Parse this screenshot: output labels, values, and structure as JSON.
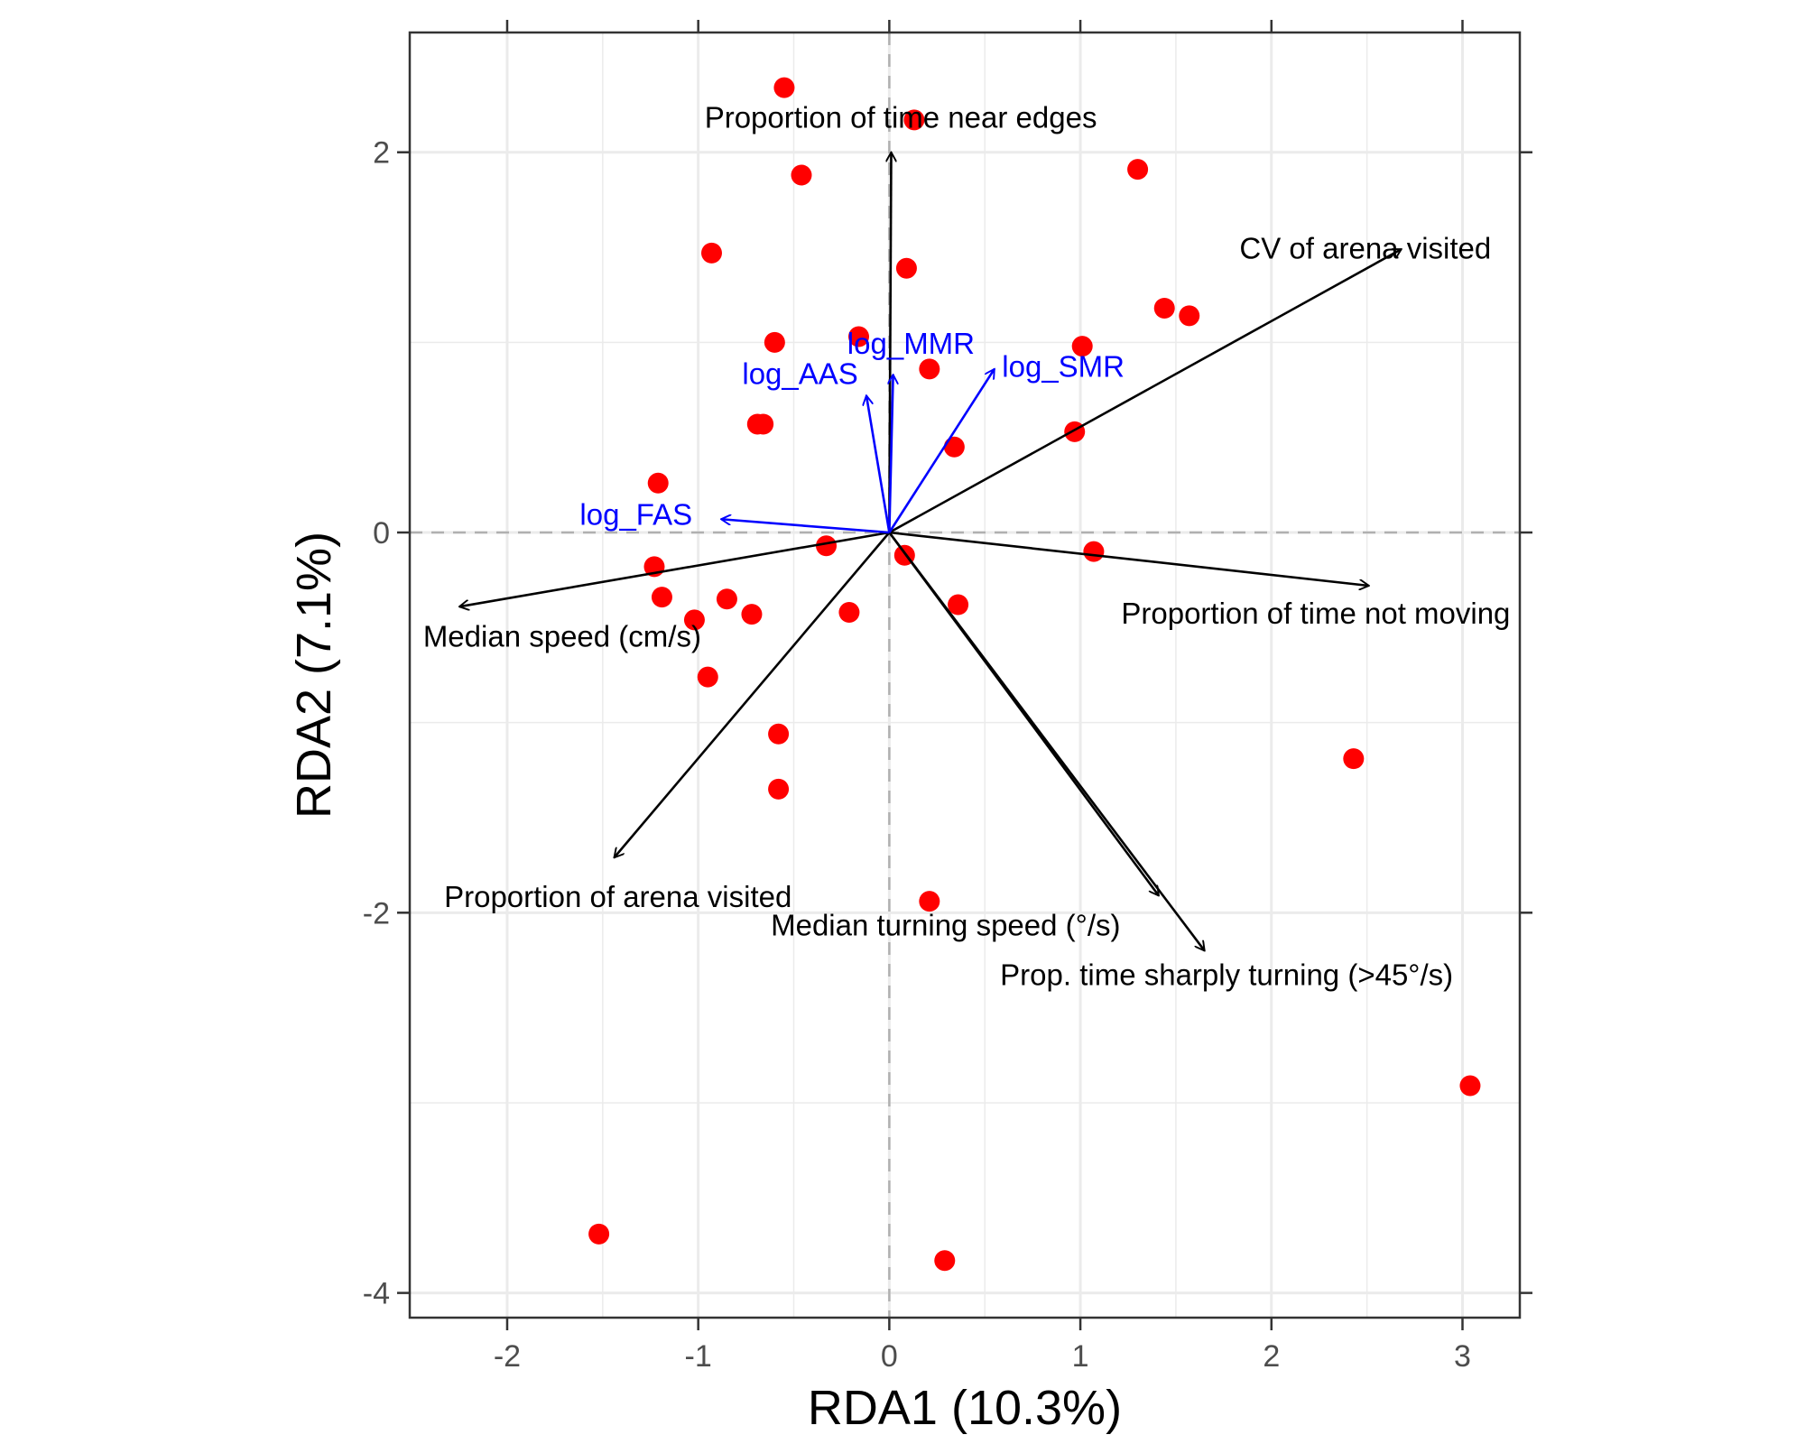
{
  "chart_data": {
    "type": "scatter",
    "subtype": "rda-biplot",
    "title": "",
    "xlabel": "RDA1 (10.3%)",
    "ylabel": "RDA2 (7.1%)",
    "xlim": [
      -2.51,
      3.3
    ],
    "ylim": [
      -4.13,
      2.63
    ],
    "xticks": [
      -2,
      -1,
      0,
      1,
      2,
      3
    ],
    "yticks": [
      -4,
      -2,
      0,
      2
    ],
    "xtick_labels": [
      "-2",
      "-1",
      "0",
      "1",
      "2",
      "3"
    ],
    "ytick_labels": [
      "-4",
      "-2",
      "0",
      "2"
    ],
    "grid": true,
    "reference_lines": {
      "x": 0,
      "y": 0,
      "style": "dashed"
    },
    "colors": {
      "points": "#ff0000",
      "response_arrows": "#000000",
      "predictor_arrows": "#0000ff"
    },
    "points": [
      {
        "x": -0.55,
        "y": 2.34
      },
      {
        "x": 0.13,
        "y": 2.17
      },
      {
        "x": -0.46,
        "y": 1.88
      },
      {
        "x": 1.3,
        "y": 1.91
      },
      {
        "x": -0.93,
        "y": 1.47
      },
      {
        "x": 0.09,
        "y": 1.39
      },
      {
        "x": 1.44,
        "y": 1.18
      },
      {
        "x": 1.57,
        "y": 1.14
      },
      {
        "x": -0.6,
        "y": 1.0
      },
      {
        "x": -0.16,
        "y": 1.03
      },
      {
        "x": 1.01,
        "y": 0.98
      },
      {
        "x": 0.21,
        "y": 0.86
      },
      {
        "x": -0.69,
        "y": 0.57
      },
      {
        "x": -0.66,
        "y": 0.57
      },
      {
        "x": 0.34,
        "y": 0.45
      },
      {
        "x": 0.97,
        "y": 0.53
      },
      {
        "x": -1.21,
        "y": 0.26
      },
      {
        "x": -0.33,
        "y": -0.07
      },
      {
        "x": 0.08,
        "y": -0.12
      },
      {
        "x": 1.07,
        "y": -0.1
      },
      {
        "x": -1.23,
        "y": -0.18
      },
      {
        "x": -1.19,
        "y": -0.34
      },
      {
        "x": -0.85,
        "y": -0.35
      },
      {
        "x": -0.72,
        "y": -0.43
      },
      {
        "x": -1.02,
        "y": -0.46
      },
      {
        "x": -0.21,
        "y": -0.42
      },
      {
        "x": 0.36,
        "y": -0.38
      },
      {
        "x": -0.95,
        "y": -0.76
      },
      {
        "x": -0.58,
        "y": -1.06
      },
      {
        "x": -0.58,
        "y": -1.35
      },
      {
        "x": 2.43,
        "y": -1.19
      },
      {
        "x": 0.21,
        "y": -1.94
      },
      {
        "x": 3.04,
        "y": -2.91
      },
      {
        "x": -1.52,
        "y": -3.69
      },
      {
        "x": 0.29,
        "y": -3.83
      }
    ],
    "response_arrows": [
      {
        "label": "Proportion of time near edges",
        "x": 0.01,
        "y": 2.0,
        "label_x": 0.06,
        "label_y": 2.13,
        "anchor": "middle"
      },
      {
        "label": "CV of arena visited",
        "x": 2.68,
        "y": 1.49,
        "label_x": 3.15,
        "label_y": 1.44,
        "anchor": "end"
      },
      {
        "label": "Proportion of time not moving",
        "x": 2.51,
        "y": -0.28,
        "label_x": 3.25,
        "label_y": -0.48,
        "anchor": "end"
      },
      {
        "label": "Median speed (cm/s)",
        "x": -2.25,
        "y": -0.39,
        "label_x": -2.44,
        "label_y": -0.6,
        "anchor": "start"
      },
      {
        "label": "Proportion of arena visited",
        "x": -1.44,
        "y": -1.71,
        "label_x": -2.33,
        "label_y": -1.97,
        "anchor": "start"
      },
      {
        "label": "Median turning speed (°/s)",
        "x": 1.41,
        "y": -1.91,
        "label_x": -0.62,
        "label_y": -2.12,
        "anchor": "start"
      },
      {
        "label": "Prop. time sharply turning (>45°/s)",
        "x": 1.65,
        "y": -2.2,
        "label_x": 0.58,
        "label_y": -2.38,
        "anchor": "start"
      }
    ],
    "predictor_arrows": [
      {
        "label": "log_FAS",
        "x": -0.88,
        "y": 0.07,
        "label_x": -1.62,
        "label_y": 0.04,
        "anchor": "start"
      },
      {
        "label": "log_AAS",
        "x": -0.12,
        "y": 0.72,
        "label_x": -0.77,
        "label_y": 0.78,
        "anchor": "start"
      },
      {
        "label": "log_MMR",
        "x": 0.02,
        "y": 0.83,
        "label_x": -0.22,
        "label_y": 0.94,
        "anchor": "start"
      },
      {
        "label": "log_SMR",
        "x": 0.55,
        "y": 0.86,
        "label_x": 0.59,
        "label_y": 0.82,
        "anchor": "start"
      }
    ]
  }
}
